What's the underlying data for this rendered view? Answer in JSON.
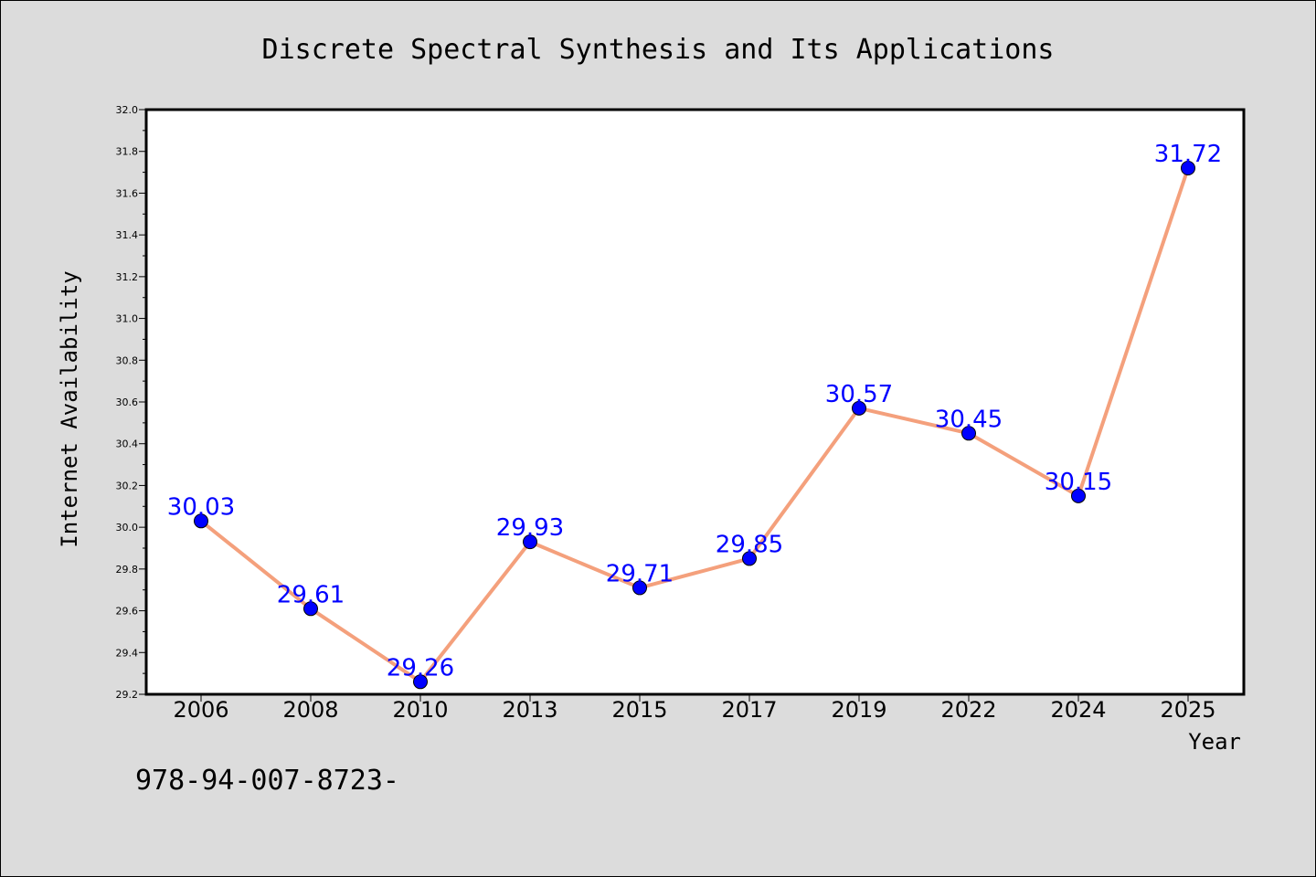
{
  "chart_data": {
    "type": "line",
    "title": "Discrete Spectral Synthesis and Its Applications",
    "xlabel": "Year",
    "ylabel": "Internet Availability",
    "categories": [
      "2006",
      "2008",
      "2010",
      "2013",
      "2015",
      "2017",
      "2019",
      "2022",
      "2024",
      "2025"
    ],
    "values": [
      30.03,
      29.61,
      29.26,
      29.93,
      29.71,
      29.85,
      30.57,
      30.45,
      30.15,
      31.72
    ],
    "data_labels": [
      "30.03",
      "29.61",
      "29.26",
      "29.93",
      "29.71",
      "29.85",
      "30.57",
      "30.45",
      "30.15",
      "31.72"
    ],
    "ylim": [
      29.2,
      32.0
    ],
    "yticks": [
      "29.2",
      "29.4",
      "29.6",
      "29.8",
      "30.0",
      "30.2",
      "30.4",
      "30.6",
      "30.8",
      "31.0",
      "31.2",
      "31.4",
      "31.6",
      "31.8",
      "32.0"
    ],
    "grid": false,
    "line_color": "#f4a07c",
    "marker_color": "#0000ff",
    "label_color": "#0000ff",
    "background_color": "#dcdcdc",
    "plot_background": "#ffffff"
  },
  "footnote": "978-94-007-8723-"
}
